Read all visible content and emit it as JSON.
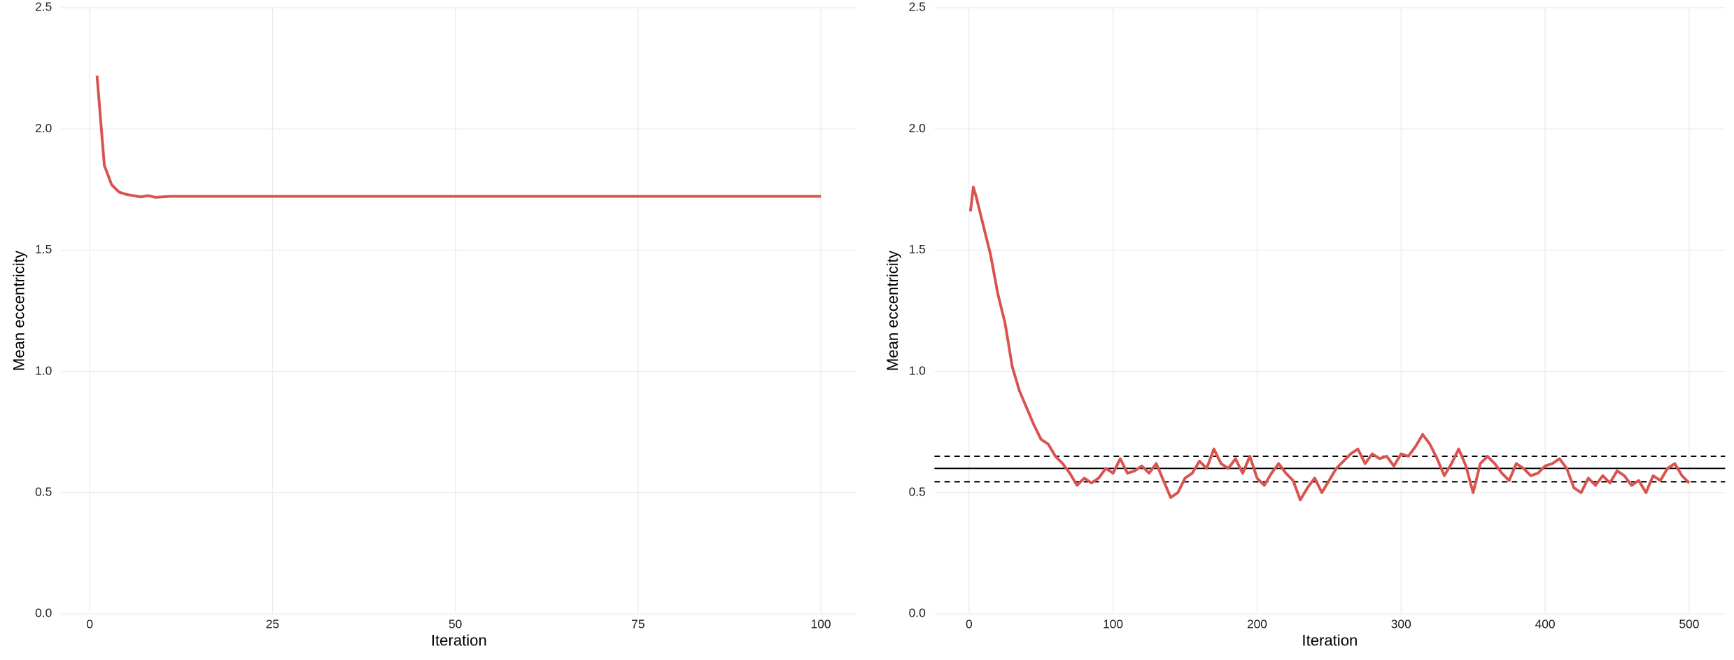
{
  "chart_data": [
    {
      "type": "line",
      "x_label": "Iteration",
      "y_label": "Mean eccentricity",
      "xlim": [
        -3.95,
        104.95
      ],
      "ylim": [
        0,
        2.5
      ],
      "xticks": [
        0,
        25,
        50,
        75,
        100
      ],
      "yticks": [
        {
          "value": 0,
          "label": "0.0"
        },
        0.5,
        {
          "value": 1,
          "label": "1.0"
        },
        1.5,
        {
          "value": 2,
          "label": "2.0"
        },
        2.5
      ],
      "grid": true,
      "series": [
        {
          "color": "#d9534f",
          "x": [
            1,
            2,
            3,
            4,
            5,
            6,
            7,
            8,
            9,
            10,
            11,
            12,
            100
          ],
          "values": [
            2.22,
            1.85,
            1.77,
            1.74,
            1.73,
            1.725,
            1.72,
            1.725,
            1.718,
            1.72,
            1.722,
            1.722,
            1.722
          ]
        }
      ]
    },
    {
      "type": "line",
      "x_label": "Iteration",
      "y_label": "Mean eccentricity",
      "xlim": [
        -24,
        525
      ],
      "ylim": [
        0,
        2.5
      ],
      "xticks": [
        0,
        100,
        200,
        300,
        400,
        500
      ],
      "yticks": [
        {
          "value": 0,
          "label": "0.0"
        },
        0.5,
        {
          "value": 1,
          "label": "1.0"
        },
        1.5,
        {
          "value": 2,
          "label": "2.0"
        },
        2.5
      ],
      "grid": true,
      "hlines": [
        {
          "value": 0.6,
          "style": "solid"
        },
        {
          "value": 0.65,
          "style": "dashed"
        },
        {
          "value": 0.545,
          "style": "dashed"
        }
      ],
      "series": [
        {
          "color": "#d9534f",
          "x": [
            1,
            3,
            5,
            10,
            15,
            20,
            25,
            30,
            35,
            40,
            45,
            50,
            55,
            60,
            65,
            70,
            75,
            80,
            85,
            90,
            95,
            100,
            105,
            110,
            115,
            120,
            125,
            130,
            135,
            140,
            145,
            150,
            155,
            160,
            165,
            170,
            175,
            180,
            185,
            190,
            195,
            200,
            205,
            210,
            215,
            220,
            225,
            230,
            235,
            240,
            245,
            250,
            255,
            260,
            265,
            270,
            275,
            280,
            285,
            290,
            295,
            300,
            305,
            310,
            315,
            320,
            325,
            330,
            335,
            340,
            345,
            350,
            355,
            360,
            365,
            370,
            375,
            380,
            385,
            390,
            395,
            400,
            405,
            410,
            415,
            420,
            425,
            430,
            435,
            440,
            445,
            450,
            455,
            460,
            465,
            470,
            475,
            480,
            485,
            490,
            495,
            500
          ],
          "values": [
            1.66,
            1.76,
            1.72,
            1.6,
            1.48,
            1.32,
            1.2,
            1.02,
            0.92,
            0.85,
            0.78,
            0.72,
            0.7,
            0.65,
            0.62,
            0.58,
            0.53,
            0.56,
            0.54,
            0.56,
            0.6,
            0.58,
            0.64,
            0.58,
            0.59,
            0.61,
            0.58,
            0.62,
            0.55,
            0.48,
            0.5,
            0.56,
            0.58,
            0.63,
            0.6,
            0.68,
            0.62,
            0.6,
            0.64,
            0.58,
            0.65,
            0.56,
            0.53,
            0.58,
            0.62,
            0.58,
            0.55,
            0.47,
            0.52,
            0.56,
            0.5,
            0.55,
            0.6,
            0.63,
            0.66,
            0.68,
            0.62,
            0.66,
            0.64,
            0.65,
            0.61,
            0.66,
            0.65,
            0.69,
            0.74,
            0.7,
            0.64,
            0.57,
            0.62,
            0.68,
            0.61,
            0.5,
            0.62,
            0.65,
            0.62,
            0.58,
            0.55,
            0.62,
            0.6,
            0.57,
            0.58,
            0.61,
            0.62,
            0.64,
            0.6,
            0.52,
            0.5,
            0.56,
            0.53,
            0.57,
            0.54,
            0.59,
            0.57,
            0.53,
            0.55,
            0.5,
            0.57,
            0.55,
            0.6,
            0.62,
            0.57,
            0.54
          ]
        }
      ]
    }
  ]
}
